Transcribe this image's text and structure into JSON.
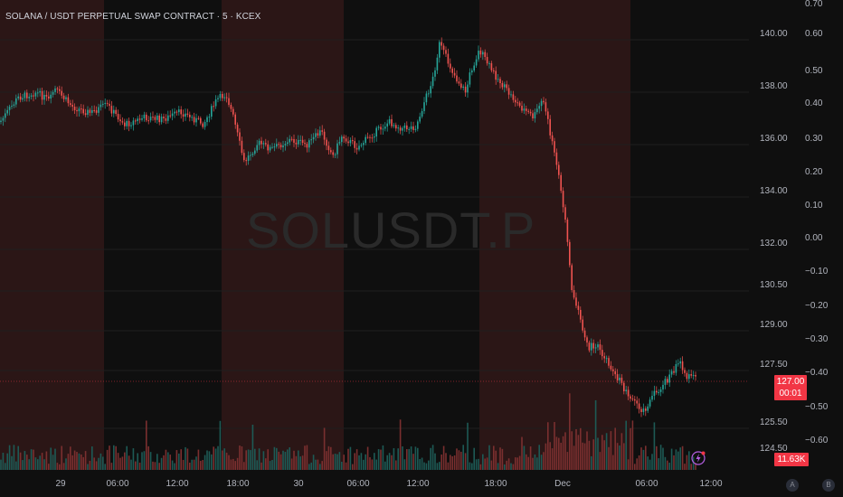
{
  "header": {
    "title": "SOLANA / USDT PERPETUAL SWAP CONTRACT · 5 · KCEX"
  },
  "watermark": "SOLUSDT.P",
  "price_axis": {
    "left_ticks": [
      "140.00",
      "138.00",
      "136.00",
      "134.00",
      "132.00",
      "130.50",
      "129.00",
      "127.50",
      "125.50",
      "124.50"
    ],
    "right_ticks": [
      "0.70",
      "0.60",
      "0.50",
      "0.40",
      "0.30",
      "0.20",
      "0.10",
      "0.00",
      "−0.10",
      "−0.20",
      "−0.30",
      "−0.40",
      "−0.50",
      "−0.60"
    ]
  },
  "current_price": {
    "price": "127.00",
    "countdown": "00:01"
  },
  "volume_badge": "11.63K",
  "time_axis": [
    "29",
    "06:00",
    "12:00",
    "18:00",
    "30",
    "06:00",
    "12:00",
    "18:00",
    "Dec",
    "06:00",
    "12:00"
  ],
  "bottom_buttons": {
    "auto": "A",
    "log": "B"
  },
  "colors": {
    "up": "#26a69a",
    "down": "#ef5350",
    "session_band": "#2b1616",
    "background": "#0f0f0f",
    "badge": "#f23645"
  },
  "icons": {
    "alert": "lightning-bolt-icon"
  }
}
